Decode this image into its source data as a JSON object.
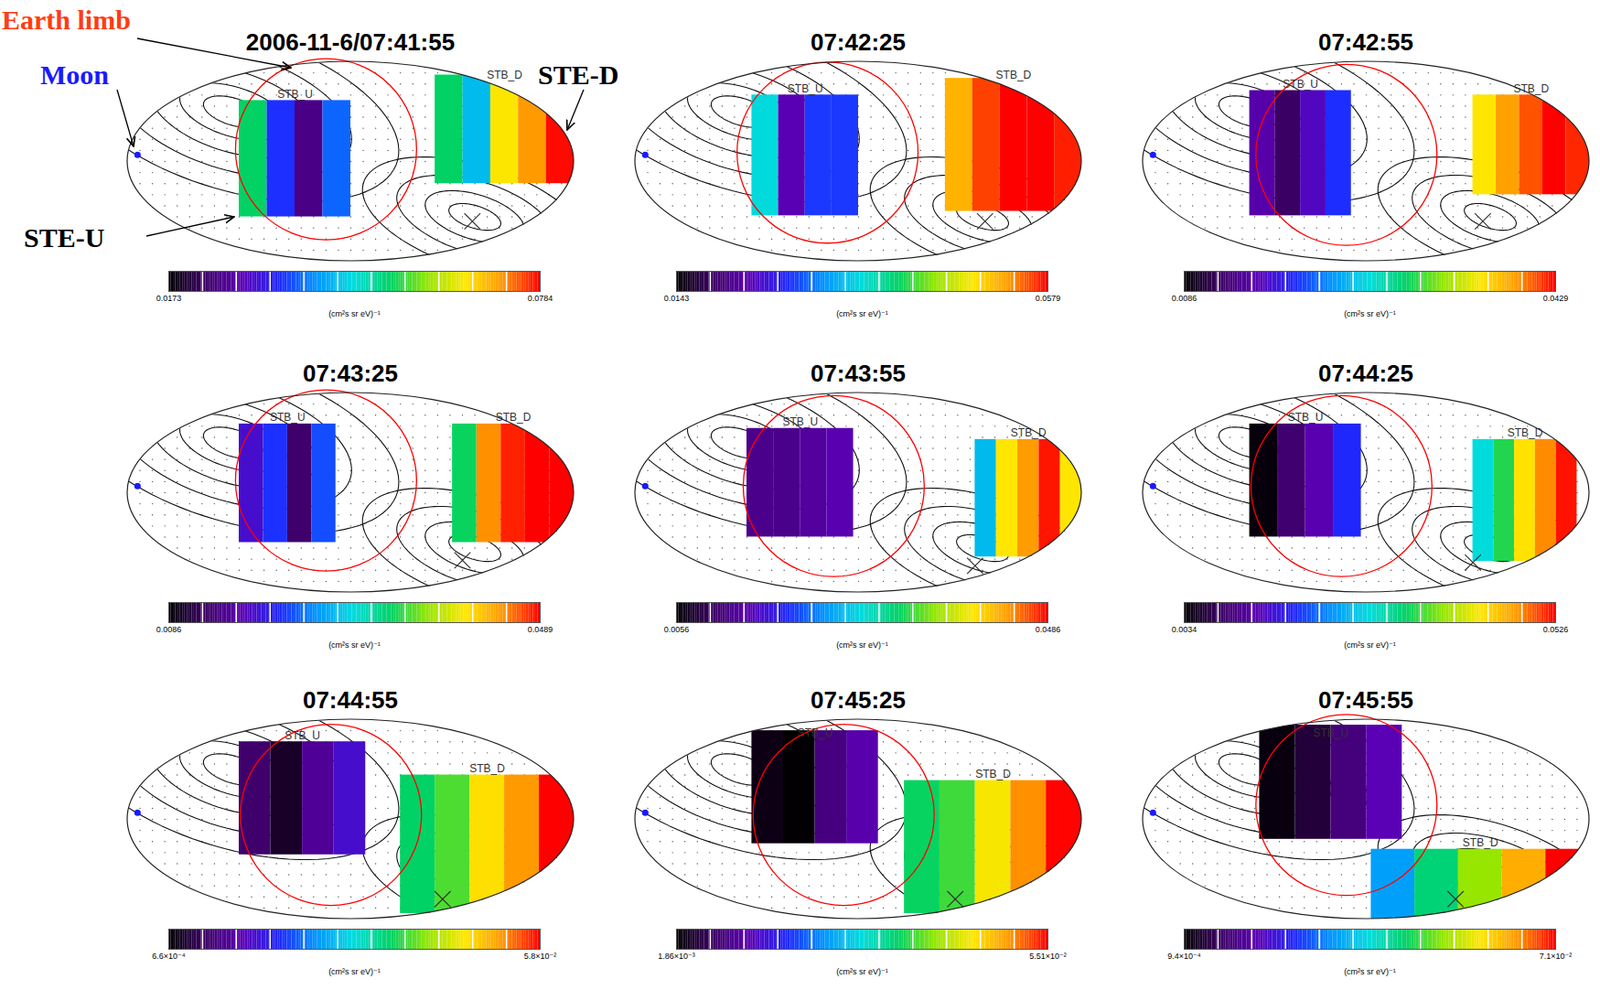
{
  "chart_data": [
    {
      "type": "sky_map",
      "title": "2006-11-6/07:41:55",
      "annotations": [
        {
          "text": "Earth limb",
          "color": "#ff3c14"
        },
        {
          "text": "Moon",
          "color": "#1a1aff"
        },
        {
          "text": "STE-D",
          "color": "#000000"
        },
        {
          "text": "STE-U",
          "color": "#000000"
        }
      ],
      "colorbar": {
        "label": "(cm²s sr eV)⁻¹",
        "range": [
          0.0173,
          0.0784
        ],
        "ticks": [
          0.0173,
          0.0784
        ]
      },
      "patches": [
        {
          "name": "STB_U",
          "lon": [
            -90,
            0
          ],
          "lat": [
            -50,
            55
          ],
          "values": [
            0.054,
            0.036,
            0.026,
            0.039
          ]
        },
        {
          "name": "STB_D",
          "lon": [
            68,
            180
          ],
          "lat": [
            -20,
            78
          ],
          "values": [
            0.054,
            0.045,
            0.066,
            0.072,
            0.078
          ]
        }
      ],
      "earth_limb": {
        "lon": -20,
        "lat": 11,
        "radius": 73
      },
      "moon": {
        "lon": -172,
        "lat": 6
      },
      "cross": {
        "lon": 98,
        "lat": -54
      }
    },
    {
      "type": "sky_map",
      "title": "07:42:25",
      "colorbar": {
        "label": "(cm²s sr eV)⁻¹",
        "range": [
          0.0143,
          0.0579
        ],
        "ticks": [
          0.0143,
          0.0579
        ]
      },
      "patches": [
        {
          "name": "STB_U",
          "lon": [
            -86,
            0
          ],
          "lat": [
            -49,
            60
          ],
          "values": [
            0.036,
            0.023,
            0.028,
            0.028
          ]
        },
        {
          "name": "STB_D",
          "lon": [
            70,
            180
          ],
          "lat": [
            -45,
            75
          ],
          "values": [
            0.052,
            0.056,
            0.058,
            0.058,
            0.057
          ]
        }
      ],
      "earth_limb": {
        "lon": -25,
        "lat": 8,
        "radius": 73
      },
      "moon": {
        "lon": -172,
        "lat": 6
      },
      "cross": {
        "lon": 102,
        "lat": -54
      }
    },
    {
      "type": "sky_map",
      "title": "07:42:55",
      "colorbar": {
        "label": "(cm²s sr eV)⁻¹",
        "range": [
          0.0086,
          0.0429
        ],
        "ticks": [
          0.0086,
          0.0429
        ]
      },
      "patches": [
        {
          "name": "STB_U",
          "lon": [
            -94,
            -12
          ],
          "lat": [
            -49,
            64
          ],
          "values": [
            0.015,
            0.012,
            0.016,
            0.019
          ]
        },
        {
          "name": "STB_D",
          "lon": [
            86,
            180
          ],
          "lat": [
            -30,
            60
          ],
          "values": [
            0.036,
            0.039,
            0.041,
            0.043,
            0.042
          ]
        }
      ],
      "earth_limb": {
        "lon": -16,
        "lat": 6,
        "radius": 73
      },
      "moon": {
        "lon": -172,
        "lat": 6
      },
      "cross": {
        "lon": 94,
        "lat": -54
      }
    },
    {
      "type": "sky_map",
      "title": "07:43:25",
      "colorbar": {
        "label": "(cm²s sr eV)⁻¹",
        "range": [
          0.0086,
          0.0489
        ],
        "ticks": [
          0.0086,
          0.0489
        ]
      },
      "patches": [
        {
          "name": "STB_U",
          "lon": [
            -90,
            -12
          ],
          "lat": [
            -45,
            62
          ],
          "values": [
            0.018,
            0.021,
            0.013,
            0.022
          ]
        },
        {
          "name": "STB_D",
          "lon": [
            82,
            180
          ],
          "lat": [
            -45,
            62
          ],
          "values": [
            0.033,
            0.045,
            0.048,
            0.049,
            0.049
          ]
        }
      ],
      "earth_limb": {
        "lon": -20,
        "lat": 11,
        "radius": 73
      },
      "moon": {
        "lon": -172,
        "lat": 6
      },
      "cross": {
        "lon": 90,
        "lat": -61
      }
    },
    {
      "type": "sky_map",
      "title": "07:43:55",
      "colorbar": {
        "label": "(cm²s sr eV)⁻¹",
        "range": [
          0.0056,
          0.0486
        ],
        "ticks": [
          0.0056,
          0.0486
        ]
      },
      "patches": [
        {
          "name": "STB_U",
          "lon": [
            -90,
            -4
          ],
          "lat": [
            -40,
            58
          ],
          "values": [
            0.012,
            0.012,
            0.013,
            0.014
          ]
        },
        {
          "name": "STB_D",
          "lon": [
            94,
            180
          ],
          "lat": [
            -58,
            48
          ],
          "values": [
            0.025,
            0.04,
            0.044,
            0.048,
            0.04
          ]
        }
      ],
      "earth_limb": {
        "lon": -20,
        "lat": 6,
        "radius": 73
      },
      "moon": {
        "lon": -172,
        "lat": 6
      },
      "cross": {
        "lon": 94,
        "lat": -66
      }
    },
    {
      "type": "sky_map",
      "title": "07:44:25",
      "colorbar": {
        "label": "(cm²s sr eV)⁻¹",
        "range": [
          0.0034,
          0.0526
        ],
        "ticks": [
          0.0034,
          0.0526
        ]
      },
      "patches": [
        {
          "name": "STB_U",
          "lon": [
            -94,
            -4
          ],
          "lat": [
            -40,
            62
          ],
          "values": [
            0.004,
            0.009,
            0.013,
            0.018
          ]
        },
        {
          "name": "STB_D",
          "lon": [
            86,
            170
          ],
          "lat": [
            -62,
            48
          ],
          "values": [
            0.028,
            0.034,
            0.043,
            0.048,
            0.052
          ]
        }
      ],
      "earth_limb": {
        "lon": -20,
        "lat": 6,
        "radius": 73
      },
      "moon": {
        "lon": -172,
        "lat": 6
      },
      "cross": {
        "lon": 86,
        "lat": -63
      }
    },
    {
      "type": "sky_map",
      "title": "07:44:55",
      "colorbar": {
        "label": "(cm²s sr eV)⁻¹",
        "range": [
          0.00066,
          0.058
        ],
        "ticks": [
          {
            "value": 0.00066,
            "label": "6.6×10⁻⁴"
          },
          {
            "value": 0.058,
            "label": "5.8×10⁻²"
          }
        ]
      },
      "patches": [
        {
          "name": "STB_U",
          "lon": [
            -90,
            12
          ],
          "lat": [
            -32,
            70
          ],
          "values": [
            0.007,
            0.003,
            0.01,
            0.014
          ]
        },
        {
          "name": "STB_D",
          "lon": [
            40,
            180
          ],
          "lat": [
            -85,
            40
          ],
          "values": [
            0.035,
            0.038,
            0.047,
            0.052,
            0.058
          ]
        }
      ],
      "earth_limb": {
        "lon": -16,
        "lat": 4,
        "radius": 73
      },
      "moon": {
        "lon": -172,
        "lat": 6
      },
      "cross": {
        "lon": 74,
        "lat": -72
      }
    },
    {
      "type": "sky_map",
      "title": "07:45:25",
      "colorbar": {
        "label": "(cm²s sr eV)⁻¹",
        "range": [
          0.00186,
          0.0551
        ],
        "ticks": [
          {
            "value": 0.00186,
            "label": "1.86×10⁻³"
          },
          {
            "value": 0.0551,
            "label": "5.51×10⁻²"
          }
        ]
      },
      "patches": [
        {
          "name": "STB_U",
          "lon": [
            -86,
            16
          ],
          "lat": [
            -22,
            80
          ],
          "values": [
            0.003,
            0.002,
            0.009,
            0.012
          ]
        },
        {
          "name": "STB_D",
          "lon": [
            37,
            180
          ],
          "lat": [
            -85,
            35
          ],
          "values": [
            0.034,
            0.036,
            0.044,
            0.05,
            0.055
          ]
        }
      ],
      "earth_limb": {
        "lon": -12,
        "lat": 4,
        "radius": 73
      },
      "moon": {
        "lon": -172,
        "lat": 6
      },
      "cross": {
        "lon": 78,
        "lat": -72
      }
    },
    {
      "type": "sky_map",
      "title": "07:45:55",
      "colorbar": {
        "label": "(cm²s sr eV)⁻¹",
        "range": [
          0.00094,
          0.071
        ],
        "ticks": [
          {
            "value": 0.00094,
            "label": "9.4×10⁻⁴"
          },
          {
            "value": 0.071,
            "label": "7.1×10⁻²"
          }
        ]
      },
      "patches": [
        {
          "name": "STB_U",
          "lon": [
            -86,
            29
          ],
          "lat": [
            -18,
            85
          ],
          "values": [
            0.002,
            0.005,
            0.01,
            0.015
          ]
        },
        {
          "name": "STB_D",
          "lon": [
            4,
            180
          ],
          "lat": [
            -90,
            -27
          ],
          "values": [
            0.03,
            0.042,
            0.05,
            0.062,
            0.071
          ]
        }
      ],
      "earth_limb": {
        "lon": -16,
        "lat": 13,
        "radius": 73
      },
      "moon": {
        "lon": -172,
        "lat": 6
      },
      "cross": {
        "lon": 72,
        "lat": -72
      }
    }
  ]
}
